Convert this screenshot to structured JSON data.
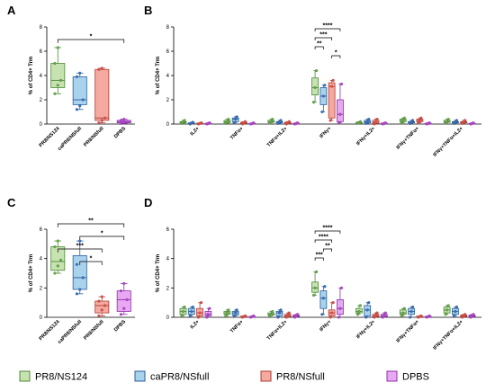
{
  "series_styles": [
    {
      "name": "PR8/NS124",
      "fill": "#c7e2b1",
      "stroke": "#4c8a37",
      "dot": "#6aa84f"
    },
    {
      "name": "caPR8/NSfull",
      "fill": "#a9d2ec",
      "stroke": "#2b5f9e",
      "dot": "#3b6fb6"
    },
    {
      "name": "PR8/NSfull",
      "fill": "#f4aaa0",
      "stroke": "#b23a2f",
      "dot": "#d9534f"
    },
    {
      "name": "DPBS",
      "fill": "#e8a8f2",
      "stroke": "#8e2fa8",
      "dot": "#b44bd1"
    }
  ],
  "legend": [
    "PR8/NS124",
    "caPR8/NSfull",
    "PR8/NSfull",
    "DPBS"
  ],
  "chart_data": [
    {
      "panel": "A",
      "type": "box",
      "ylabel": "% of CD4+ Trm",
      "ylim": [
        0,
        8
      ],
      "yticks": [
        0,
        2,
        4,
        6,
        8
      ],
      "categories": [
        "PR8/NS124",
        "caPR8/NSfull",
        "PR8/NSfull",
        "DPBS"
      ],
      "boxes": [
        {
          "min": 2.5,
          "q1": 3.0,
          "median": 3.6,
          "q3": 5.0,
          "max": 6.3,
          "points": [
            2.5,
            3.2,
            3.6,
            5.0,
            6.3
          ]
        },
        {
          "min": 1.2,
          "q1": 1.6,
          "median": 2.0,
          "q3": 3.9,
          "max": 4.2,
          "points": [
            1.2,
            1.5,
            2.0,
            3.9,
            4.2
          ]
        },
        {
          "min": 0.1,
          "q1": 0.3,
          "median": 0.5,
          "q3": 4.5,
          "max": 4.6,
          "points": [
            0.1,
            0.3,
            0.5,
            4.5,
            4.6
          ]
        },
        {
          "min": 0.05,
          "q1": 0.1,
          "median": 0.2,
          "q3": 0.3,
          "max": 0.4,
          "points": [
            0.05,
            0.15,
            0.2,
            0.3,
            0.4
          ]
        }
      ],
      "significance": [
        {
          "from": 0,
          "to": 3,
          "label": "*"
        }
      ]
    },
    {
      "panel": "B",
      "type": "box-grouped",
      "ylabel": "% of CD4+ Trm",
      "ylim": [
        0,
        8
      ],
      "yticks": [
        0,
        2,
        4,
        6,
        8
      ],
      "categories": [
        "IL2+",
        "TNFα+",
        "TNFα+IL2+",
        "IFNγ+",
        "IFNγ+IL2+",
        "IFNγ+TNFα+",
        "IFNγ+TNFα+IL2+"
      ],
      "groups": [
        [
          [
            0.05,
            0.1,
            0.15,
            0.2,
            0.3
          ],
          [
            0.0,
            0.05,
            0.08,
            0.1,
            0.15
          ],
          [
            0.0,
            0.02,
            0.05,
            0.08,
            0.1
          ],
          [
            0.0,
            0.02,
            0.04,
            0.06,
            0.1
          ]
        ],
        [
          [
            0.05,
            0.1,
            0.2,
            0.3,
            0.4
          ],
          [
            0.1,
            0.2,
            0.4,
            0.5,
            0.6
          ],
          [
            0.0,
            0.05,
            0.1,
            0.15,
            0.2
          ],
          [
            0.0,
            0.02,
            0.04,
            0.06,
            0.1
          ]
        ],
        [
          [
            0.1,
            0.15,
            0.2,
            0.3,
            0.4
          ],
          [
            0.05,
            0.1,
            0.15,
            0.2,
            0.3
          ],
          [
            0.0,
            0.05,
            0.1,
            0.15,
            0.2
          ],
          [
            0.0,
            0.02,
            0.04,
            0.06,
            0.1
          ]
        ],
        [
          [
            1.8,
            2.4,
            3.0,
            3.8,
            4.4
          ],
          [
            1.0,
            1.6,
            2.3,
            3.0,
            3.2
          ],
          [
            0.3,
            0.5,
            3.1,
            3.4,
            3.6
          ],
          [
            0.1,
            0.2,
            0.8,
            2.0,
            3.3
          ]
        ],
        [
          [
            0.05,
            0.08,
            0.1,
            0.15,
            0.2
          ],
          [
            0.05,
            0.1,
            0.2,
            0.3,
            0.4
          ],
          [
            0.0,
            0.05,
            0.15,
            0.3,
            0.4
          ],
          [
            0.0,
            0.02,
            0.05,
            0.08,
            0.1
          ]
        ],
        [
          [
            0.1,
            0.2,
            0.3,
            0.4,
            0.5
          ],
          [
            0.05,
            0.1,
            0.15,
            0.2,
            0.3
          ],
          [
            0.1,
            0.2,
            0.3,
            0.4,
            0.5
          ],
          [
            0.0,
            0.02,
            0.04,
            0.06,
            0.1
          ]
        ],
        [
          [
            0.1,
            0.15,
            0.2,
            0.3,
            0.4
          ],
          [
            0.05,
            0.1,
            0.15,
            0.2,
            0.3
          ],
          [
            0.05,
            0.1,
            0.15,
            0.2,
            0.3
          ],
          [
            0.0,
            0.02,
            0.04,
            0.06,
            0.1
          ]
        ]
      ],
      "significance": [
        {
          "from": 0,
          "to": 3,
          "label": "****"
        },
        {
          "from": 0,
          "to": 2,
          "label": "***"
        },
        {
          "from": 0,
          "to": 1,
          "label": "**"
        },
        {
          "from": 2,
          "to": 3,
          "label": "*"
        }
      ]
    },
    {
      "panel": "C",
      "type": "box",
      "ylabel": "% of CD4+ Trm",
      "ylim": [
        0,
        6
      ],
      "yticks": [
        0,
        2,
        4,
        6
      ],
      "categories": [
        "PR8/NS124",
        "caPR8/NSfull",
        "PR8/NSfull",
        "DPBS"
      ],
      "boxes": [
        {
          "min": 3.0,
          "q1": 3.2,
          "median": 3.8,
          "q3": 4.8,
          "max": 5.2,
          "points": [
            3.0,
            3.5,
            3.9,
            4.8,
            5.2
          ]
        },
        {
          "min": 1.6,
          "q1": 1.9,
          "median": 2.7,
          "q3": 4.2,
          "max": 5.2,
          "points": [
            1.6,
            1.9,
            2.7,
            3.6,
            5.2
          ]
        },
        {
          "min": 0.1,
          "q1": 0.3,
          "median": 0.8,
          "q3": 1.1,
          "max": 1.4,
          "points": [
            0.1,
            0.5,
            0.8,
            1.1,
            1.4
          ]
        },
        {
          "min": 0.2,
          "q1": 0.4,
          "median": 1.2,
          "q3": 1.8,
          "max": 2.3,
          "points": [
            0.2,
            0.6,
            1.2,
            1.8,
            2.3
          ]
        }
      ],
      "significance": [
        {
          "from": 0,
          "to": 3,
          "label": "**"
        },
        {
          "from": 1,
          "to": 3,
          "label": "*"
        },
        {
          "from": 0,
          "to": 2,
          "label": "***"
        },
        {
          "from": 1,
          "to": 2,
          "label": "*"
        }
      ]
    },
    {
      "panel": "D",
      "type": "box-grouped",
      "ylabel": "% of CD4+ Trm",
      "ylim": [
        0,
        6
      ],
      "yticks": [
        0,
        2,
        4,
        6
      ],
      "categories": [
        "IL2+",
        "TNFα+",
        "TNFα+IL2+",
        "IFNγ+",
        "IFNγ+IL2+",
        "IFNγ+TNFα+",
        "IFNγ+TNFα+IL2+"
      ],
      "groups": [
        [
          [
            0.1,
            0.2,
            0.4,
            0.6,
            0.7
          ],
          [
            0.1,
            0.2,
            0.4,
            0.6,
            0.7
          ],
          [
            0.0,
            0.1,
            0.3,
            0.6,
            1.0
          ],
          [
            0.0,
            0.1,
            0.2,
            0.4,
            0.6
          ]
        ],
        [
          [
            0.1,
            0.2,
            0.3,
            0.4,
            0.5
          ],
          [
            0.1,
            0.15,
            0.3,
            0.4,
            0.5
          ],
          [
            0.0,
            0.02,
            0.05,
            0.08,
            0.1
          ],
          [
            0.0,
            0.02,
            0.04,
            0.06,
            0.1
          ]
        ],
        [
          [
            0.1,
            0.15,
            0.2,
            0.3,
            0.4
          ],
          [
            0.0,
            0.1,
            0.3,
            0.4,
            0.5
          ],
          [
            0.0,
            0.05,
            0.1,
            0.2,
            0.3
          ],
          [
            0.0,
            0.05,
            0.1,
            0.15,
            0.2
          ]
        ],
        [
          [
            1.5,
            1.7,
            2.0,
            2.4,
            3.1
          ],
          [
            0.2,
            0.6,
            1.3,
            1.8,
            2.1
          ],
          [
            0.0,
            0.1,
            0.3,
            0.5,
            1.0
          ],
          [
            0.0,
            0.2,
            0.6,
            1.2,
            2.0
          ]
        ],
        [
          [
            0.2,
            0.3,
            0.4,
            0.6,
            0.8
          ],
          [
            0.0,
            0.1,
            0.5,
            0.8,
            1.0
          ],
          [
            0.0,
            0.05,
            0.1,
            0.2,
            0.3
          ],
          [
            0.0,
            0.05,
            0.1,
            0.2,
            0.3
          ]
        ],
        [
          [
            0.1,
            0.2,
            0.3,
            0.5,
            0.6
          ],
          [
            0.0,
            0.2,
            0.4,
            0.6,
            0.7
          ],
          [
            0.0,
            0.02,
            0.05,
            0.08,
            0.1
          ],
          [
            0.0,
            0.02,
            0.04,
            0.06,
            0.1
          ]
        ],
        [
          [
            0.2,
            0.3,
            0.5,
            0.7,
            0.8
          ],
          [
            0.1,
            0.2,
            0.4,
            0.6,
            0.7
          ],
          [
            0.0,
            0.05,
            0.1,
            0.15,
            0.2
          ],
          [
            0.0,
            0.05,
            0.1,
            0.15,
            0.2
          ]
        ]
      ],
      "significance": [
        {
          "from": 0,
          "to": 3,
          "label": "****"
        },
        {
          "from": 0,
          "to": 2,
          "label": "****"
        },
        {
          "from": 1,
          "to": 2,
          "label": "**"
        },
        {
          "from": 0,
          "to": 1,
          "label": "***"
        }
      ]
    }
  ]
}
